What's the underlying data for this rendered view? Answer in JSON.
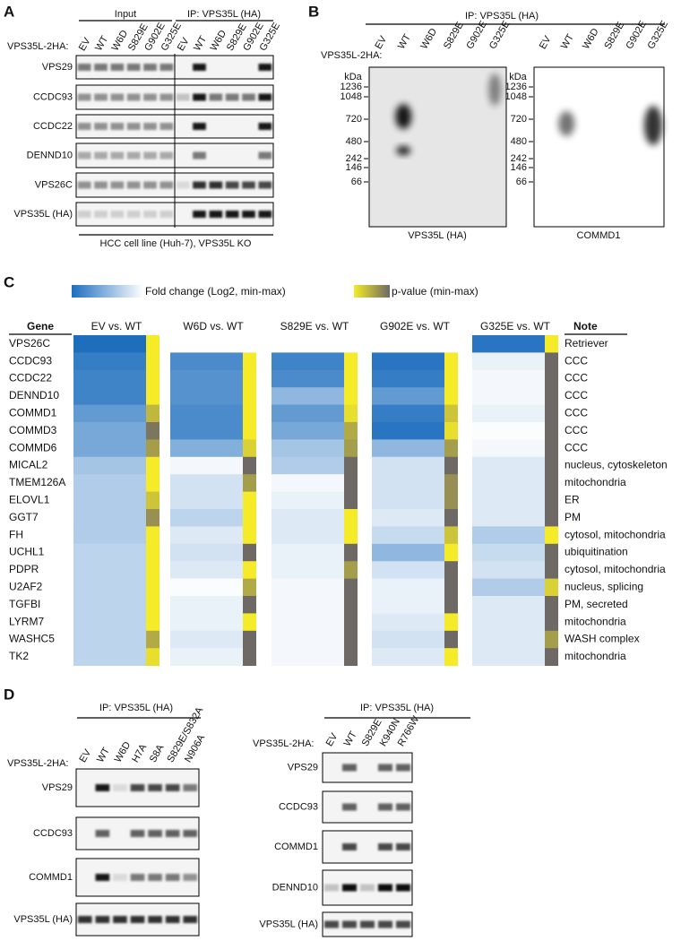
{
  "panels": {
    "A": {
      "label": "A",
      "group_input": "Input",
      "group_ip": "IP: VPS35L (HA)",
      "row_title": "VPS35L-2HA:",
      "lanes": [
        "EV",
        "WT",
        "W6D",
        "S829E",
        "G902E",
        "G325E",
        "EV",
        "WT",
        "W6D",
        "S829E",
        "G902E",
        "G325E"
      ],
      "blots": [
        "VPS29",
        "CCDC93",
        "CCDC22",
        "DENND10",
        "VPS26C",
        "VPS35L (HA)"
      ],
      "footer": "HCC cell line (Huh-7), VPS35L KO"
    },
    "B": {
      "label": "B",
      "header": "IP: VPS35L (HA)",
      "row_title": "VPS35L-2HA:",
      "lanes": [
        "EV",
        "WT",
        "W6D",
        "S829E",
        "G902E",
        "G325E",
        "EV",
        "WT",
        "W6D",
        "S829E",
        "G902E",
        "G325E"
      ],
      "unit": "kDa",
      "markers": [
        1236,
        1048,
        720,
        480,
        242,
        146,
        66
      ],
      "blot_left": "VPS35L (HA)",
      "blot_right": "COMMD1"
    },
    "C": {
      "label": "C",
      "legend_fold": "Fold change (Log2, min-max)",
      "legend_p": "p-value (min-max)",
      "gene_header": "Gene",
      "note_header": "Note",
      "genes": [
        "VPS26C",
        "CCDC93",
        "CCDC22",
        "DENND10",
        "COMMD1",
        "COMMD3",
        "COMMD6",
        "MICAL2",
        "TMEM126A",
        "ELOVL1",
        "GGT7",
        "FH",
        "UCHL1",
        "PDPR",
        "U2AF2",
        "TGFBI",
        "LYRM7",
        "WASHC5",
        "TK2"
      ],
      "notes": [
        "Retriever",
        "CCC",
        "CCC",
        "CCC",
        "CCC",
        "CCC",
        "CCC",
        "nucleus, cytoskeleton",
        "mitochondria",
        "ER",
        "PM",
        "cytosol, mitochondria",
        "ubiquitination",
        "cytosol, mitochondria",
        "nucleus, splicing",
        "PM, secreted",
        "mitochondria",
        "WASH complex",
        "mitochondria"
      ],
      "comparisons": [
        {
          "name": "EV vs. WT",
          "fold": [
            1,
            0.9,
            0.85,
            0.85,
            0.7,
            0.6,
            0.6,
            0.4,
            0.35,
            0.35,
            0.35,
            0.35,
            0.3,
            0.3,
            0.3,
            0.3,
            0.3,
            0.3,
            0.3
          ],
          "pvalue": [
            0,
            0,
            0,
            0,
            0.4,
            0.9,
            0.6,
            0,
            0,
            0.3,
            0.7,
            0,
            0,
            0,
            0,
            0,
            0,
            0.5,
            0.1
          ]
        },
        {
          "name": "W6D vs. WT",
          "fold": [
            null,
            0.8,
            0.75,
            0.75,
            0.8,
            0.8,
            0.55,
            0.05,
            0.2,
            0.2,
            0.3,
            0.15,
            0.2,
            0.15,
            0.02,
            0.1,
            0.1,
            0.15,
            0.1
          ],
          "pvalue": [
            null,
            0,
            0,
            0,
            0,
            0,
            0.2,
            1,
            0.6,
            0,
            0,
            0,
            1,
            0,
            0.5,
            1,
            0,
            1,
            1
          ]
        },
        {
          "name": "S829E vs. WT",
          "fold": [
            null,
            0.85,
            0.8,
            0.5,
            0.7,
            0.6,
            0.4,
            0.35,
            0.05,
            0.1,
            0.15,
            0.15,
            0.1,
            0.1,
            0.05,
            0.05,
            0.05,
            0.05,
            0.05
          ],
          "pvalue": [
            null,
            0,
            0,
            0,
            0.1,
            0.5,
            0.6,
            1,
            1,
            1,
            0,
            0,
            1,
            0.6,
            1,
            1,
            1,
            1,
            1
          ]
        },
        {
          "name": "G902E vs. WT",
          "fold": [
            null,
            0.95,
            0.9,
            0.7,
            0.9,
            0.95,
            0.5,
            0.2,
            0.2,
            0.2,
            0.15,
            0.25,
            0.5,
            0.2,
            0.1,
            0.1,
            0.15,
            0.2,
            0.15
          ],
          "pvalue": [
            null,
            0,
            0,
            0,
            0.3,
            0.1,
            0.6,
            1,
            0.7,
            0.7,
            1,
            0.3,
            0,
            1,
            1,
            1,
            0,
            1,
            0
          ]
        },
        {
          "name": "G325E vs. WT",
          "fold": [
            0.95,
            0.1,
            0.05,
            0.05,
            0.1,
            0.02,
            0.05,
            0.15,
            0.15,
            0.15,
            0.15,
            0.35,
            0.25,
            0.2,
            0.35,
            0.15,
            0.15,
            0.15,
            0.15
          ],
          "pvalue": [
            0,
            1,
            1,
            1,
            1,
            1,
            1,
            1,
            1,
            1,
            1,
            0,
            1,
            1,
            0.2,
            1,
            1,
            0.6,
            1
          ]
        }
      ]
    },
    "D": {
      "label": "D",
      "left": {
        "header": "IP: VPS35L (HA)",
        "row_title": "VPS35L-2HA:",
        "lanes": [
          "EV",
          "WT",
          "W6D",
          "H7A",
          "S8A",
          "S829E/S832A",
          "N906A"
        ],
        "blots": [
          "VPS29",
          "CCDC93",
          "COMMD1",
          "VPS35L (HA)"
        ]
      },
      "right": {
        "header": "IP: VPS35L (HA)",
        "row_title": "VPS35L-2HA:",
        "lanes": [
          "EV",
          "WT",
          "S829E",
          "K940N",
          "R766W"
        ],
        "blots": [
          "VPS29",
          "CCDC93",
          "COMMD1",
          "DENND10",
          "VPS35L (HA)"
        ]
      }
    }
  }
}
